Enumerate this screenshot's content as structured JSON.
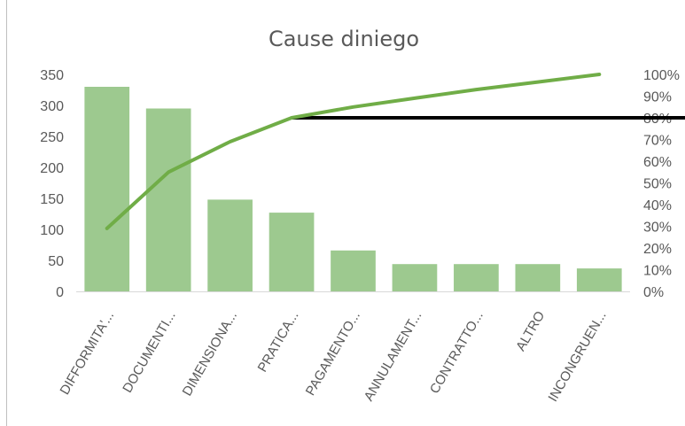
{
  "chart_data": {
    "type": "bar",
    "title": "Cause diniego",
    "categories": [
      "DIFFORMITA'...",
      "DOCUMENTI...",
      "DIMENSIONA...",
      "PRATICA...",
      "PAGAMENTO...",
      "ANNULAMENT...",
      "CONTRATTO...",
      "ALTRO",
      "INCONGRUEN..."
    ],
    "series": [
      {
        "type": "bar",
        "axis": "left",
        "values": [
          330,
          295,
          148,
          127,
          66,
          44,
          44,
          44,
          37
        ],
        "color": "#9dc98f"
      },
      {
        "type": "line",
        "axis": "right",
        "values": [
          29,
          55,
          69,
          80,
          85,
          89,
          93,
          96.5,
          100
        ],
        "color": "#70ad47"
      }
    ],
    "reference_line": {
      "axis": "right",
      "value": 80,
      "color": "#000000"
    },
    "ylim_left": [
      0,
      350
    ],
    "left_ticks": [
      "0",
      "50",
      "100",
      "150",
      "200",
      "250",
      "300",
      "350"
    ],
    "ylim_right": [
      0,
      100
    ],
    "right_ticks": [
      "0%",
      "10%",
      "20%",
      "30%",
      "40%",
      "50%",
      "60%",
      "70%",
      "80%",
      "90%",
      "100%"
    ],
    "grid": false,
    "legend": "none"
  }
}
